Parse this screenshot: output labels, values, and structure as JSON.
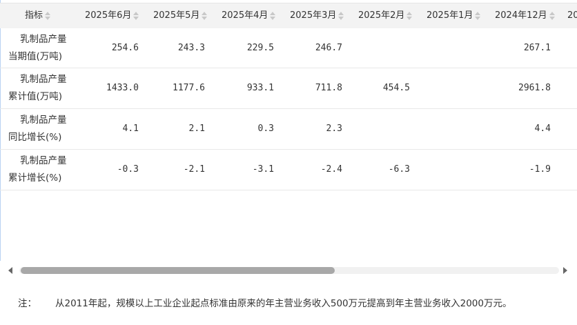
{
  "columns": [
    {
      "label": "指标"
    },
    {
      "label": "2025年6月"
    },
    {
      "label": "2025年5月"
    },
    {
      "label": "2025年4月"
    },
    {
      "label": "2025年3月"
    },
    {
      "label": "2025年2月"
    },
    {
      "label": "2025年1月"
    },
    {
      "label": "2024年12月"
    },
    {
      "label": "20"
    }
  ],
  "rows": [
    {
      "label_line1": "乳制品产量",
      "label_line2": "当期值(万吨)",
      "values": [
        "254.6",
        "243.3",
        "229.5",
        "246.7",
        "",
        "",
        "267.1"
      ]
    },
    {
      "label_line1": "乳制品产量",
      "label_line2": "累计值(万吨)",
      "values": [
        "1433.0",
        "1177.6",
        "933.1",
        "711.8",
        "454.5",
        "",
        "2961.8"
      ]
    },
    {
      "label_line1": "乳制品产量",
      "label_line2": "同比增长(%)",
      "values": [
        "4.1",
        "2.1",
        "0.3",
        "2.3",
        "",
        "",
        "4.4"
      ]
    },
    {
      "label_line1": "乳制品产量",
      "label_line2": "累计增长(%)",
      "values": [
        "-0.3",
        "-2.1",
        "-3.1",
        "-2.4",
        "-6.3",
        "",
        "-1.9"
      ]
    }
  ],
  "scroll": {
    "thumb_fraction": 0.58,
    "position_fraction": 0.0
  },
  "note": {
    "label": "注：",
    "text": "从2011年起，规模以上工业企业起点标准由原来的年主营业务收入500万元提高到年主营业务收入2000万元。"
  }
}
